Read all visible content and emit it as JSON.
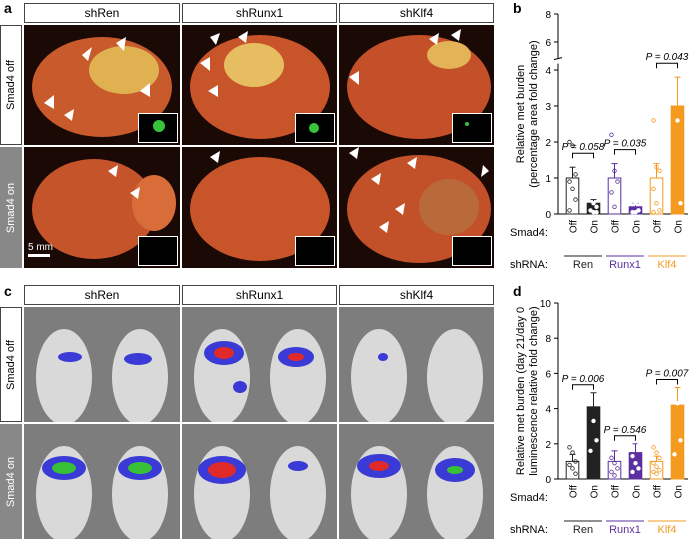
{
  "panels": {
    "a": {
      "letter": "a"
    },
    "b": {
      "letter": "b"
    },
    "c": {
      "letter": "c"
    },
    "d": {
      "letter": "d"
    }
  },
  "columns": [
    "shRen",
    "shRunx1",
    "shKlf4"
  ],
  "rows": {
    "off": "Smad4 off",
    "on": "Smad4 on"
  },
  "scale_bar": "5 mm",
  "colors": {
    "ren": "#222222",
    "runx1": "#5b2fa0",
    "klf4": "#f39a1f"
  },
  "chart_data": [
    {
      "type": "bar",
      "panel": "b",
      "ylabel_lines": [
        "Relative met burden",
        "(percentage area fold change)"
      ],
      "ylim": [
        0,
        8
      ],
      "yticks": [
        0,
        1,
        2,
        3,
        4,
        6,
        8
      ],
      "axis_break": true,
      "categories": [
        "Off",
        "On",
        "Off",
        "On",
        "Off",
        "On"
      ],
      "row_labels": {
        "smad4": "Smad4:",
        "shrna": "shRNA:"
      },
      "groups": [
        {
          "name": "Ren",
          "color": "#222222",
          "off": 1.0,
          "on": 0.3,
          "off_err": 0.3,
          "on_err": 0.1,
          "p": "P = 0.058",
          "off_points": [
            2.0,
            1.9,
            1.1,
            0.9,
            0.7,
            0.4,
            0.1
          ],
          "on_points": [
            0.7,
            0.3,
            0.2,
            0.1,
            0.05,
            0.05
          ]
        },
        {
          "name": "Runx1",
          "color": "#5b2fa0",
          "off": 1.0,
          "on": 0.2,
          "off_err": 0.4,
          "on_err": 0.1,
          "p": "P = 0.035",
          "off_points": [
            2.2,
            1.2,
            0.9,
            0.6,
            0.2
          ],
          "on_points": [
            0.6,
            0.3,
            0.1,
            0.05,
            0.05,
            0.1
          ]
        },
        {
          "name": "Klf4",
          "color": "#f39a1f",
          "off": 1.0,
          "on": 3.0,
          "off_err": 0.4,
          "on_err": 0.8,
          "p": "P = 0.043",
          "off_points": [
            2.6,
            1.3,
            1.2,
            0.7,
            0.3,
            0.1,
            0.05
          ],
          "on_points": [
            6.2,
            6.0,
            5.6,
            3.1,
            2.6,
            0.3
          ]
        }
      ]
    },
    {
      "type": "bar",
      "panel": "d",
      "ylabel_lines": [
        "Relative met burden (day 21/day 0",
        "luminescence relative fold change)"
      ],
      "ylim": [
        0,
        10
      ],
      "yticks": [
        0,
        2,
        4,
        6,
        8,
        10
      ],
      "categories": [
        "Off",
        "On",
        "Off",
        "On",
        "Off",
        "On"
      ],
      "row_labels": {
        "smad4": "Smad4:",
        "shrna": "shRNA:"
      },
      "groups": [
        {
          "name": "Ren",
          "color": "#222222",
          "off": 1.0,
          "on": 4.1,
          "off_err": 0.4,
          "on_err": 0.8,
          "p": "P = 0.006",
          "off_points": [
            1.8,
            1.5,
            1.0,
            0.8,
            0.6,
            0.3
          ],
          "on_points": [
            8.3,
            7.6,
            5.2,
            4.4,
            3.3,
            2.2,
            1.6
          ]
        },
        {
          "name": "Runx1",
          "color": "#5b2fa0",
          "off": 1.0,
          "on": 1.5,
          "off_err": 0.6,
          "on_err": 0.5,
          "p": "P = 0.546",
          "off_points": [
            1.2,
            0.9,
            0.6,
            0.4,
            0.2
          ],
          "on_points": [
            5.4,
            2.3,
            1.9,
            1.3,
            0.9,
            0.6,
            0.4
          ]
        },
        {
          "name": "Klf4",
          "color": "#f39a1f",
          "off": 1.0,
          "on": 4.2,
          "off_err": 0.3,
          "on_err": 1.0,
          "p": "P = 0.007",
          "off_points": [
            1.8,
            1.5,
            1.2,
            0.9,
            0.7,
            0.5,
            0.4,
            0.3
          ],
          "on_points": [
            7.3,
            7.0,
            6.3,
            5.0,
            4.3,
            2.2,
            1.4
          ]
        }
      ]
    }
  ]
}
